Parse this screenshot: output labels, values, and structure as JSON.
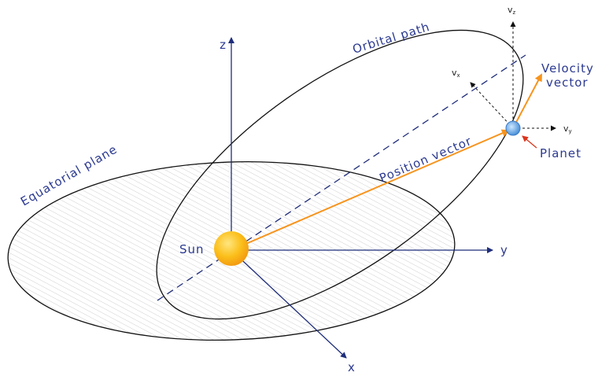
{
  "labels": {
    "z_axis": "z",
    "y_axis": "y",
    "x_axis": "x",
    "sun": "Sun",
    "orbital_path": "Orbital path",
    "equatorial_plane": "Equatorial plane",
    "position_vector": "Position vector",
    "velocity_vector": [
      "Velocity",
      "vector"
    ],
    "planet": "Planet",
    "vz": {
      "base": "v",
      "sub": "z"
    },
    "vx": {
      "base": "v",
      "sub": "x"
    },
    "vy": {
      "base": "v",
      "sub": "y"
    }
  }
}
